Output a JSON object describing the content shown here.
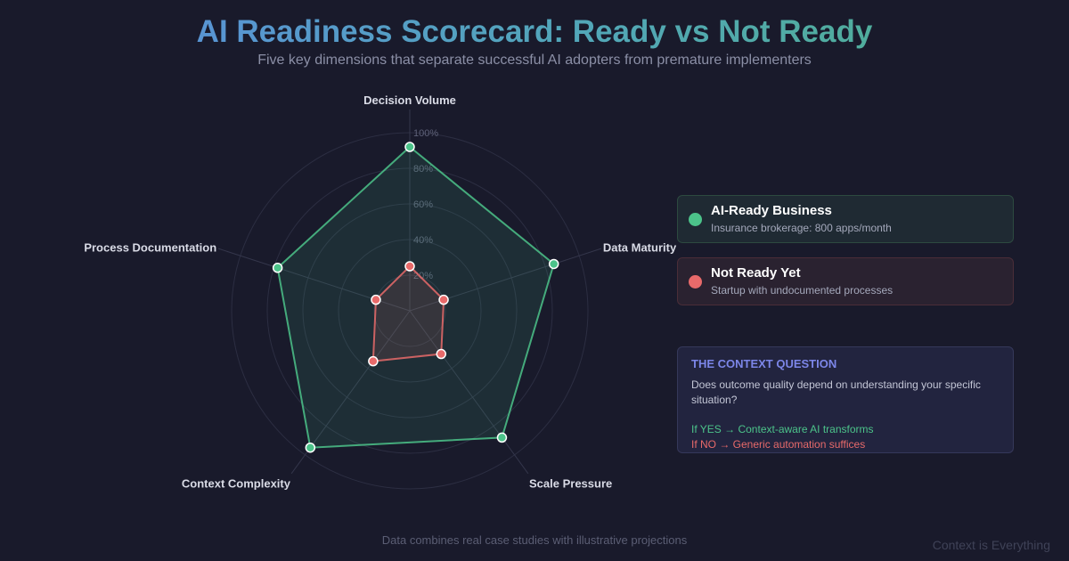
{
  "header": {
    "title": "AI Readiness Scorecard: Ready vs Not Ready",
    "subtitle": "Five key dimensions that separate successful AI adopters from premature implementers"
  },
  "chart_data": {
    "type": "radar",
    "axes": [
      "Decision Volume",
      "Data Maturity",
      "Scale Pressure",
      "Context Complexity",
      "Process Documentation"
    ],
    "rlim": [
      0,
      100
    ],
    "ticks": [
      20,
      40,
      60,
      80,
      100
    ],
    "tick_labels": [
      "20%",
      "40%",
      "60%",
      "80%",
      "100%"
    ],
    "series": [
      {
        "name": "AI-Ready Business",
        "values": [
          92,
          85,
          88,
          95,
          78
        ],
        "color": "#4cc38a"
      },
      {
        "name": "Not Ready Yet",
        "values": [
          25,
          20,
          30,
          35,
          20
        ],
        "color": "#e86a6a"
      }
    ]
  },
  "legend": {
    "items": [
      {
        "title": "AI-Ready Business",
        "desc": "Insurance brokerage: 800 apps/month",
        "color": "#4cc38a"
      },
      {
        "title": "Not Ready Yet",
        "desc": "Startup with undocumented processes",
        "color": "#e86a6a"
      }
    ]
  },
  "question": {
    "title": "THE CONTEXT QUESTION",
    "body": "Does outcome quality depend on understanding your specific situation?",
    "yes": "If YES → Context-aware AI transforms",
    "no": "If NO → Generic automation suffices"
  },
  "footer": {
    "note": "Data combines real case studies with illustrative projections",
    "brand": "Context is Everything"
  }
}
